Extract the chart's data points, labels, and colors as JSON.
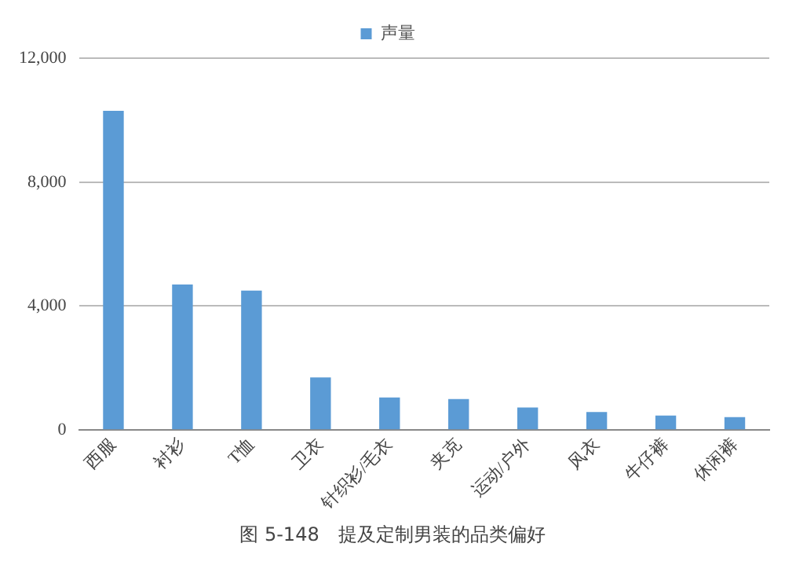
{
  "chart_data": {
    "type": "bar",
    "categories": [
      "西服",
      "衬衫",
      "T恤",
      "卫衣",
      "针织衫/毛衣",
      "夹克",
      "运动/户外",
      "风衣",
      "牛仔裤",
      "休闲裤"
    ],
    "series": [
      {
        "name": "声量",
        "color": "#5b9bd5",
        "values": [
          10300,
          4700,
          4500,
          1700,
          1050,
          1000,
          730,
          580,
          470,
          420
        ]
      }
    ],
    "ylim": [
      0,
      12000
    ],
    "yticks": [
      {
        "value": 0,
        "label": "0"
      },
      {
        "value": 4000,
        "label": "4,000"
      },
      {
        "value": 8000,
        "label": "8,000"
      },
      {
        "value": 12000,
        "label": "12,000"
      }
    ],
    "grid": "y",
    "legend": "top",
    "annotations": [
      "图 5-148　提及定制男装的品类偏好"
    ]
  }
}
